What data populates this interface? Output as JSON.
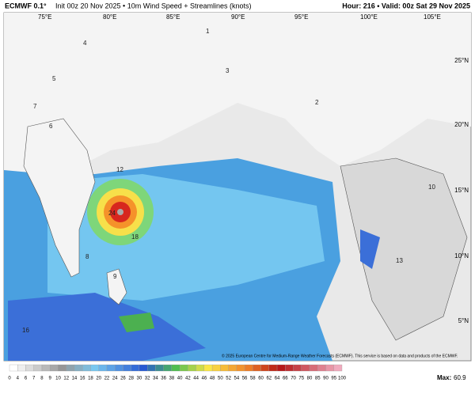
{
  "header": {
    "model": "ECMWF 0.1°",
    "description": "Init 00z 20 Nov 2025 • 10m Wind Speed + Streamlines (knots)",
    "valid": "Hour: 216 • Valid: 00z Sat 29 Nov 2025"
  },
  "longitudes": [
    "75°E",
    "80°E",
    "85°E",
    "90°E",
    "95°E",
    "100°E",
    "105°E"
  ],
  "latitudes": [
    "25°N",
    "20°N",
    "15°N",
    "10°N",
    "5°N"
  ],
  "map_labels": [
    "5",
    "4",
    "3",
    "2",
    "1",
    "6",
    "7",
    "12",
    "18",
    "24",
    "16",
    "10",
    "9",
    "8",
    "13"
  ],
  "copyright": "© 2025 European Centre for Medium-Range Weather Forecasts (ECMWF). This service is based on data and products of the ECMWF.",
  "colorbar": {
    "ticks": [
      0,
      4,
      6,
      7,
      8,
      9,
      10,
      12,
      14,
      16,
      18,
      20,
      22,
      24,
      26,
      28,
      30,
      32,
      34,
      36,
      38,
      40,
      42,
      44,
      46,
      48,
      50,
      52,
      54,
      56,
      58,
      60,
      62,
      64,
      66,
      70,
      75,
      80,
      85,
      90,
      95,
      100
    ]
  },
  "max": {
    "label": "Max:",
    "value": 60.9
  }
}
